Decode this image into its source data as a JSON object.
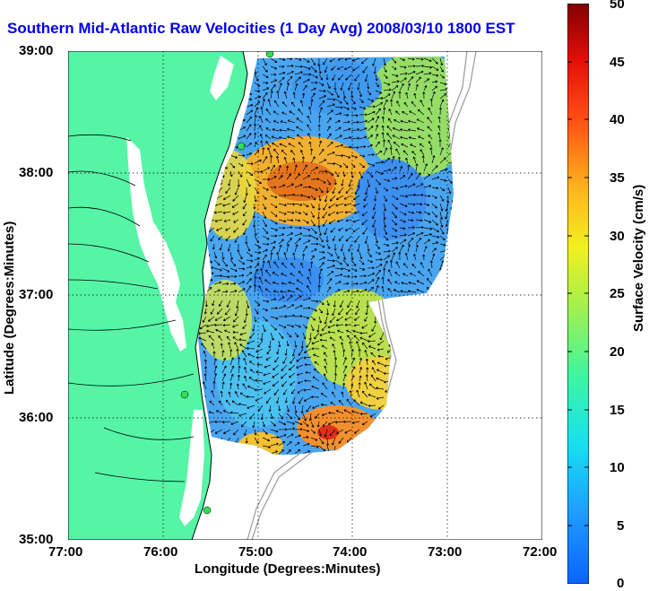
{
  "title": "Southern Mid-Atlantic Raw Velocities (1 Day Avg) 2008/03/10 1800 EST",
  "xaxis": {
    "label": "Longitude (Degrees:Minutes)",
    "ticks": [
      "77:00",
      "76:00",
      "75:00",
      "74:00",
      "73:00",
      "72:00"
    ]
  },
  "yaxis": {
    "label": "Latitude (Degrees:Minutes)",
    "ticks": [
      "39:00",
      "38:00",
      "37:00",
      "36:00",
      "35:00"
    ]
  },
  "colorbar": {
    "label": "Surface Velocity (cm/s)",
    "min": 0,
    "max": 50,
    "ticks": [
      "50",
      "45",
      "40",
      "35",
      "30",
      "25",
      "20",
      "15",
      "10",
      "5",
      "0"
    ]
  },
  "map": {
    "extent": {
      "lon": [
        -77,
        -72
      ],
      "lat": [
        35,
        39
      ]
    },
    "land_color": "#55f5a5",
    "ocean_color": "#ffffff",
    "grid": "dotted",
    "stations": [
      {
        "lon": -74.88,
        "lat": 39.0
      },
      {
        "lon": -75.1,
        "lat": 38.23
      },
      {
        "lon": -75.7,
        "lat": 36.2
      },
      {
        "lon": -75.45,
        "lat": 35.25
      }
    ]
  }
}
